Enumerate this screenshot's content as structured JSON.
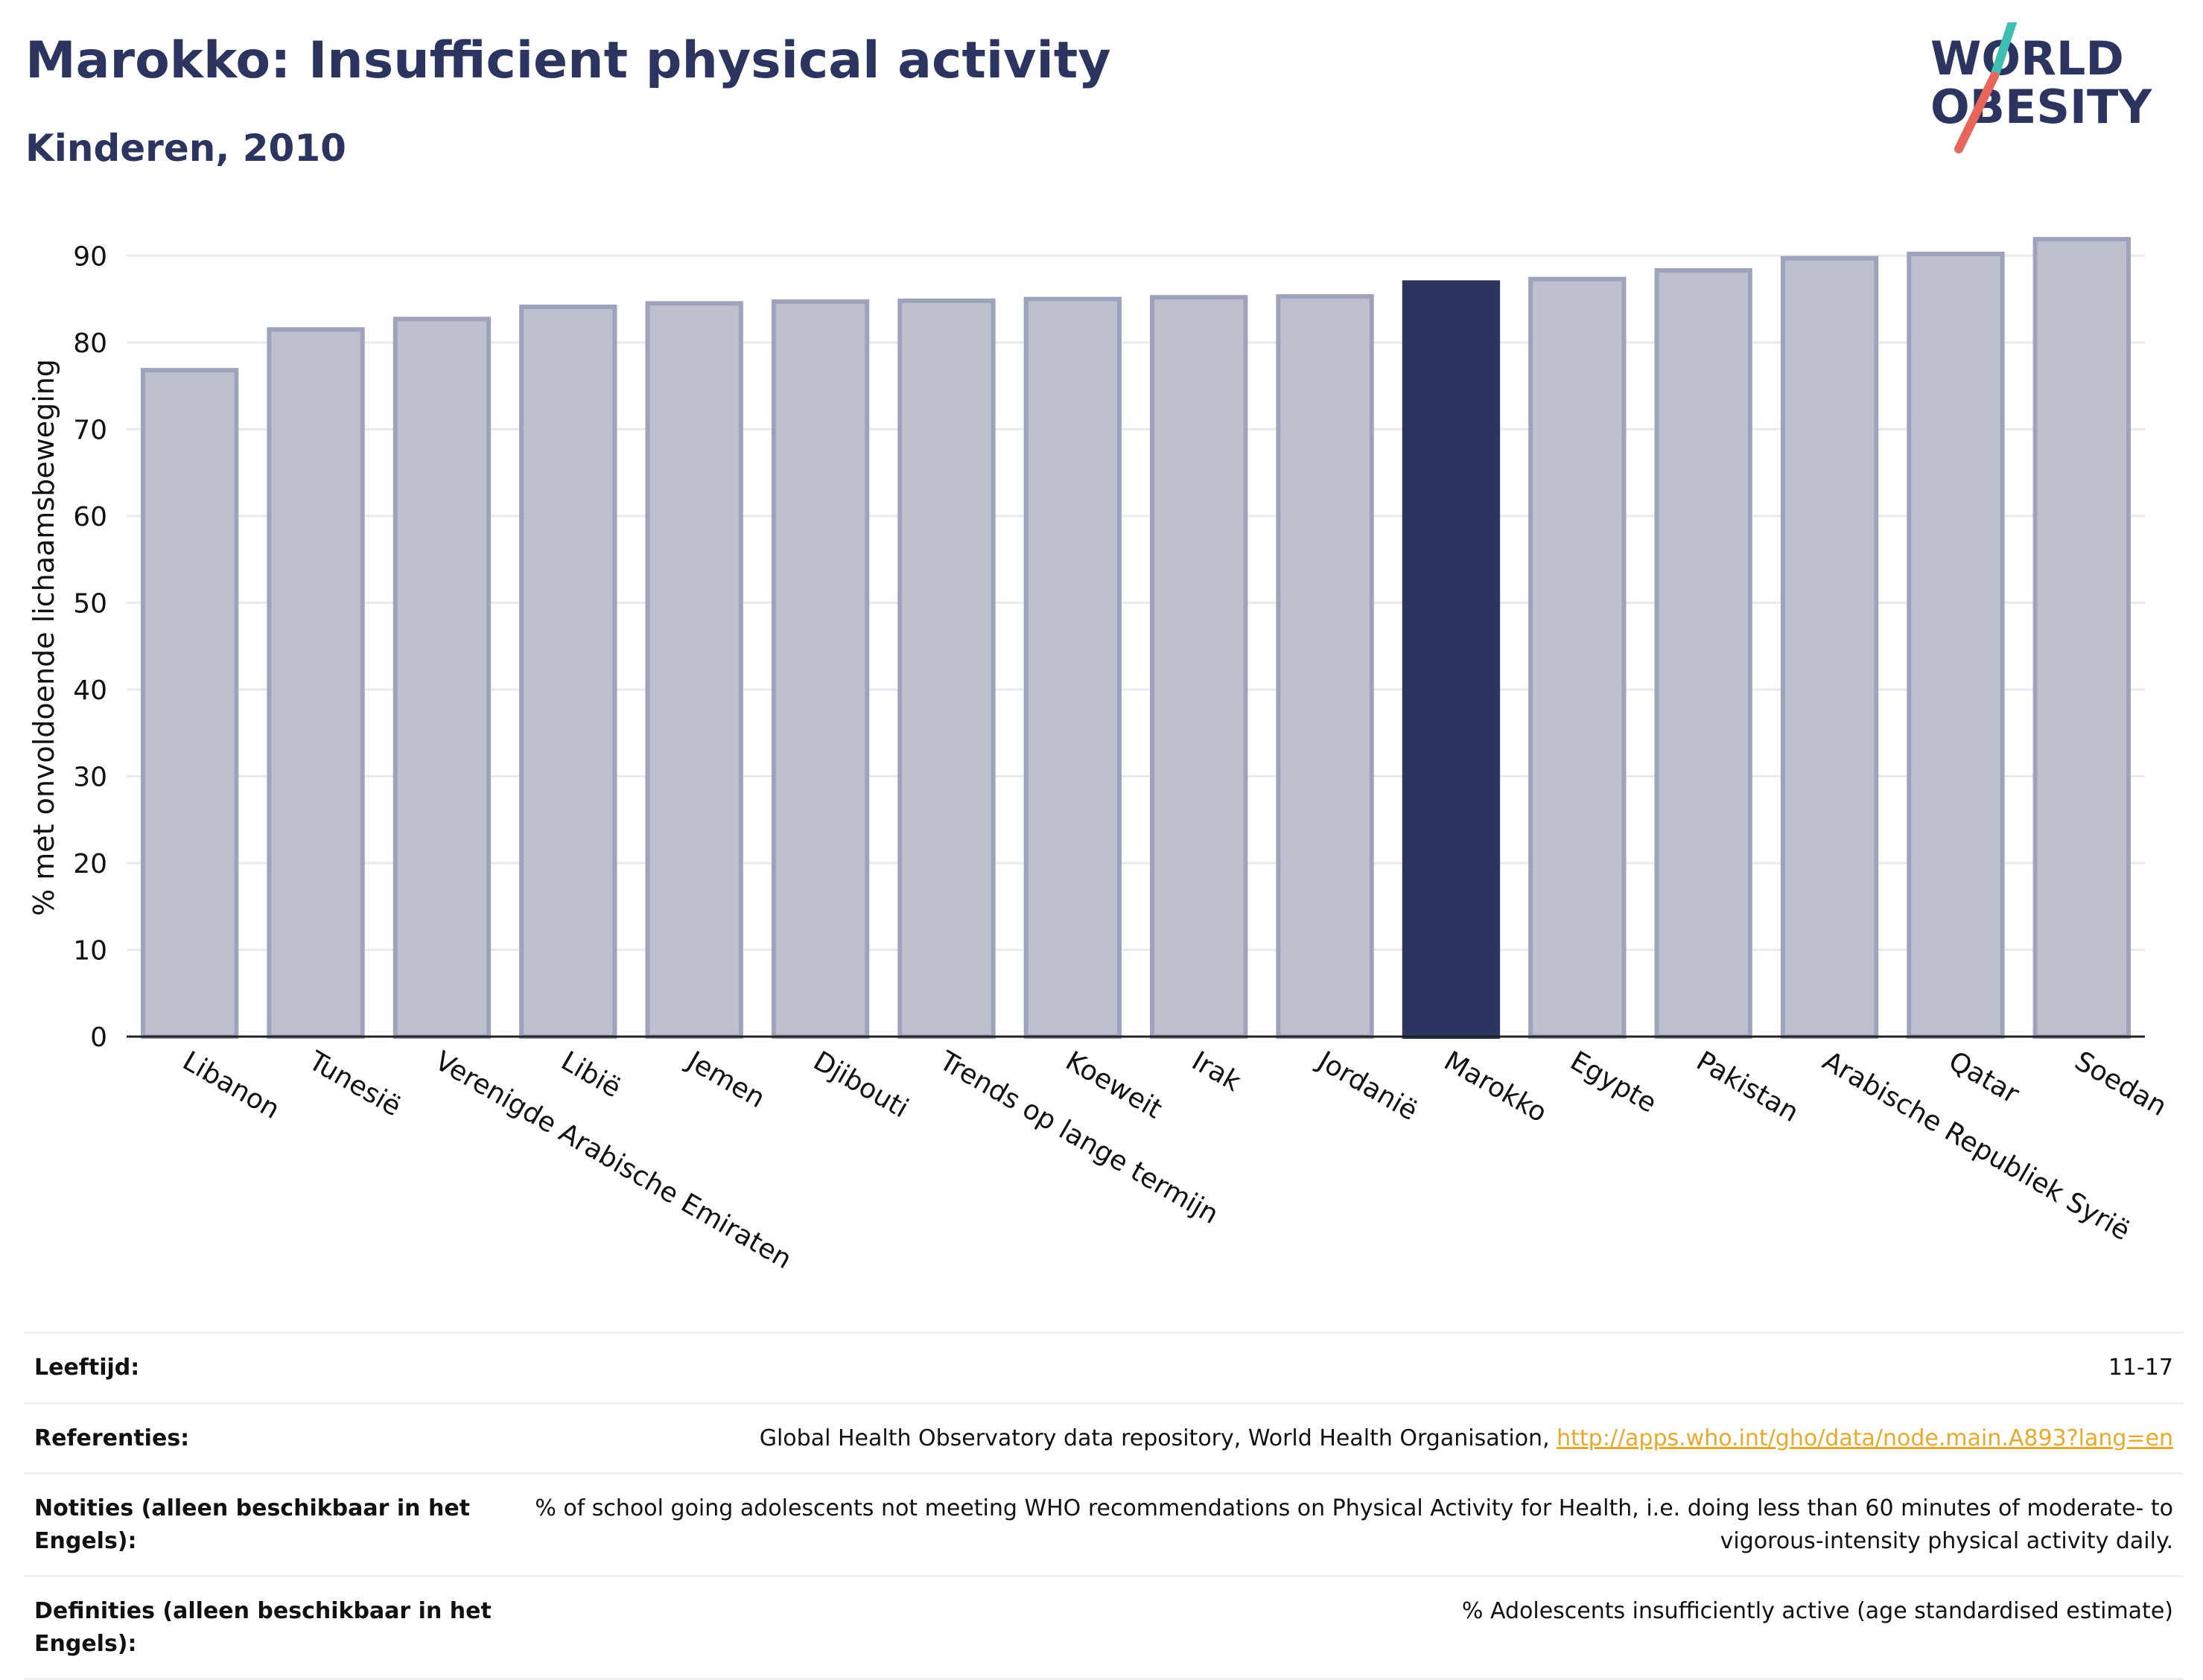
{
  "header": {
    "title": "Marokko: Insufficient physical activity",
    "subtitle": "Kinderen, 2010"
  },
  "logo": {
    "line1": "WORLD",
    "line2": "OBESITY",
    "accent_teal": "#3fbfb2",
    "accent_red": "#e8655a",
    "text_color": "#2b3560"
  },
  "chart_data": {
    "type": "bar",
    "ylabel": "% met onvoldoende lichaamsbeweging",
    "xlabel": "",
    "ylim": [
      0,
      92
    ],
    "yticks": [
      0,
      10,
      20,
      30,
      40,
      50,
      60,
      70,
      80,
      90
    ],
    "grid": true,
    "highlight_category": "Marokko",
    "colors": {
      "bar_fill": "#bdc0cf",
      "bar_stroke": "#9ea3bb",
      "highlight": "#2b3560",
      "grid": "#e8e8ee",
      "axis": "#222222"
    },
    "categories": [
      "Libanon",
      "Tunesië",
      "Verenigde Arabische Emiraten",
      "Libië",
      "Jemen",
      "Djibouti",
      "Trends op lange termijn",
      "Koeweit",
      "Irak",
      "Jordanië",
      "Marokko",
      "Egypte",
      "Pakistan",
      "Arabische Republiek Syrië",
      "Qatar",
      "Soedan"
    ],
    "values": [
      76.8,
      81.5,
      82.7,
      84.1,
      84.5,
      84.7,
      84.8,
      85.0,
      85.2,
      85.3,
      86.9,
      87.3,
      88.3,
      89.7,
      90.2,
      91.9
    ]
  },
  "details": {
    "age": {
      "label": "Leeftijd:",
      "value": "11-17"
    },
    "references": {
      "label": "Referenties:",
      "value": "Global Health Observatory data repository, World Health Organisation, ",
      "link": "http://apps.who.int/gho/data/node.main.A893?lang=en"
    },
    "notes": {
      "label": "Notities (alleen beschikbaar in het Engels):",
      "value": "% of school going adolescents not meeting WHO recommendations on Physical Activity for Health, i.e. doing less than 60 minutes of moderate- to vigorous-intensity physical activity daily."
    },
    "definitions": {
      "label": "Definities (alleen beschikbaar in het Engels):",
      "value": "% Adolescents insufficiently active (age standardised estimate)"
    }
  }
}
